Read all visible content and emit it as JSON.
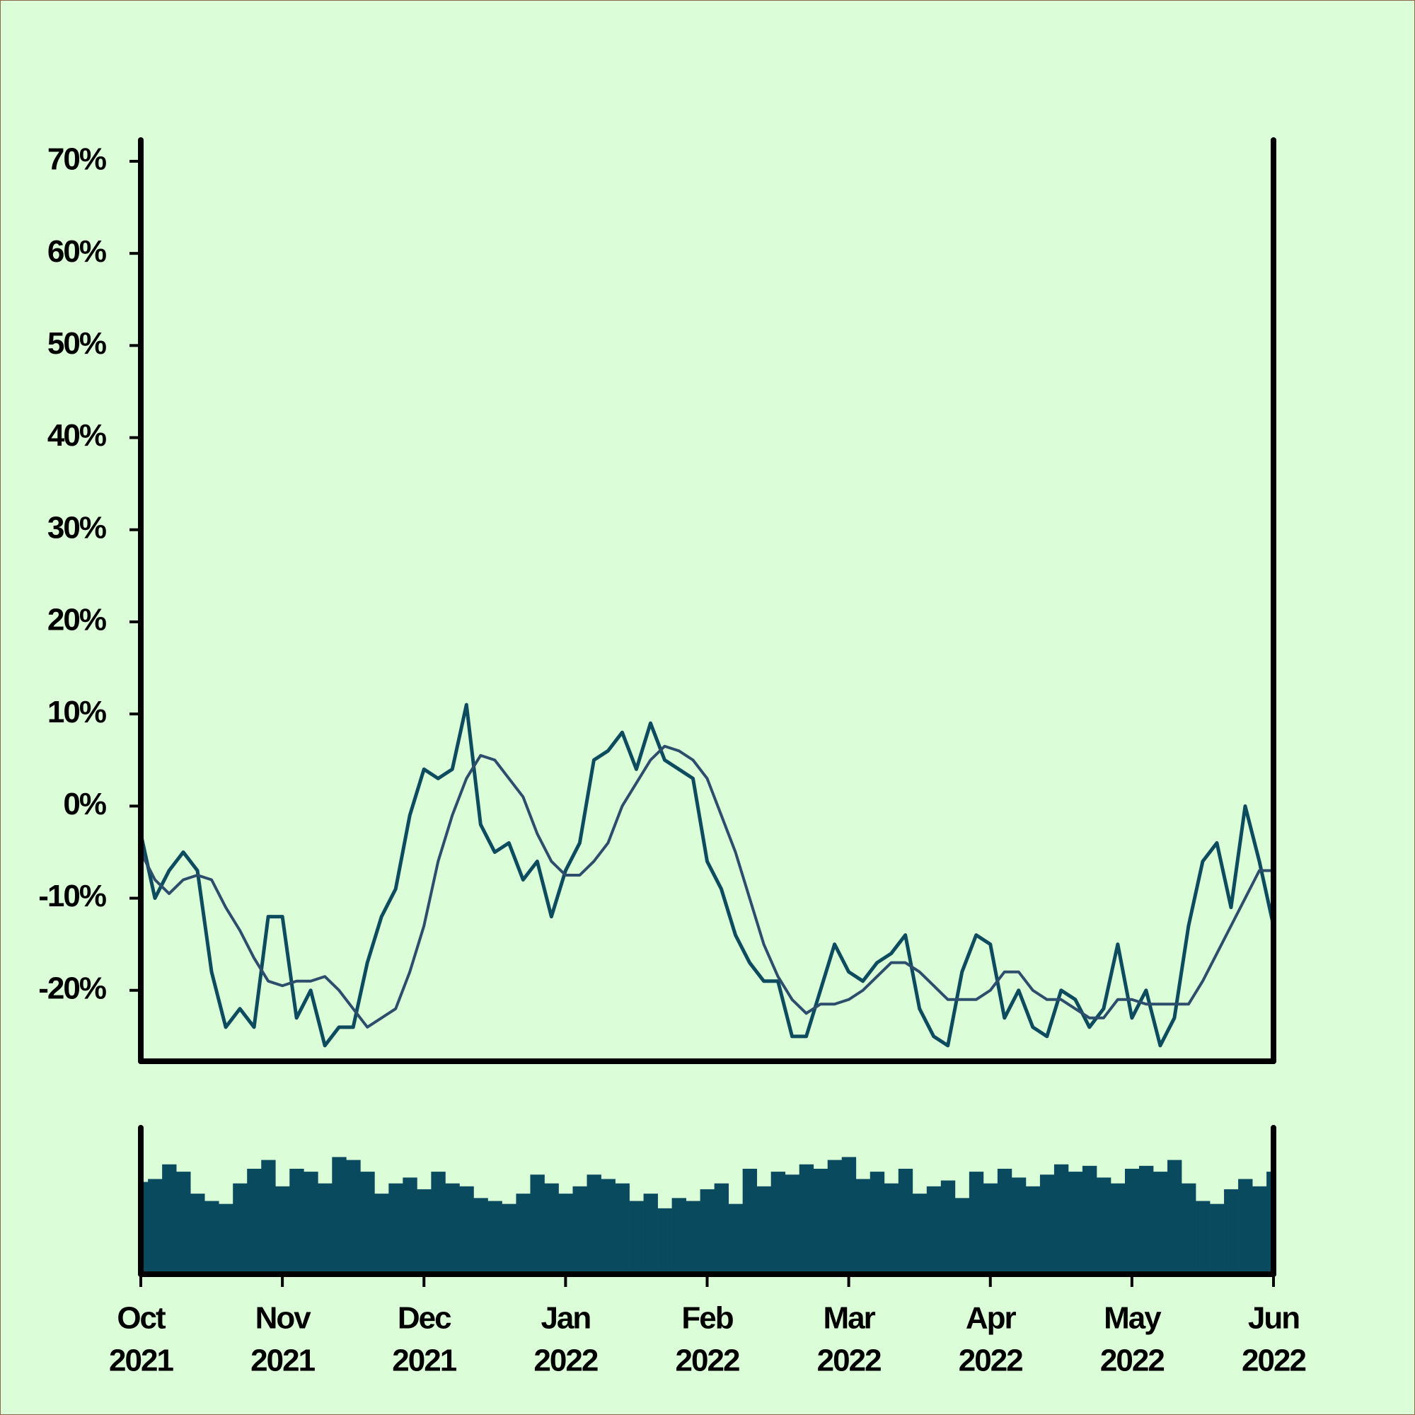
{
  "chart_data": [
    {
      "type": "line",
      "x": [
        0,
        1,
        2,
        3,
        4,
        5,
        6,
        7,
        8,
        9,
        10,
        11,
        12,
        13,
        14,
        15,
        16,
        17,
        18,
        19,
        20,
        21,
        22,
        23,
        24,
        25,
        26,
        27,
        28,
        29,
        30,
        31,
        32,
        33,
        34,
        35,
        36,
        37,
        38,
        39,
        40,
        41,
        42,
        43,
        44,
        45,
        46,
        47,
        48,
        49,
        50,
        51,
        52,
        53,
        54,
        55,
        56,
        57,
        58,
        59,
        60,
        61,
        62,
        63,
        64,
        65,
        66,
        67,
        68,
        69,
        70,
        71,
        72,
        73,
        74,
        75,
        76,
        77,
        78,
        79,
        80
      ],
      "xlim": [
        0,
        80
      ],
      "ylim": [
        -27.7,
        72.3
      ],
      "yticks": [
        {
          "value": 70,
          "label": "70%"
        },
        {
          "value": 60,
          "label": "60%"
        },
        {
          "value": 50,
          "label": "50%"
        },
        {
          "value": 40,
          "label": "40%"
        },
        {
          "value": 30,
          "label": "30%"
        },
        {
          "value": 20,
          "label": "20%"
        },
        {
          "value": 10,
          "label": "10%"
        },
        {
          "value": 0,
          "label": "0%"
        },
        {
          "value": -10,
          "label": "-10%"
        },
        {
          "value": -20,
          "label": "-20%"
        }
      ],
      "series": [
        {
          "color": "#0d4b5f",
          "values": [
            -3,
            -10,
            -7,
            -5,
            -7,
            -18,
            -24,
            -22,
            -24,
            -12,
            -12,
            -23,
            -20,
            -26,
            -24,
            -24,
            -17,
            -12,
            -9,
            -1,
            4,
            3,
            4,
            11,
            -2,
            -5,
            -4,
            -8,
            -6,
            -12,
            -7,
            -4,
            5,
            6,
            8,
            4,
            9,
            5,
            4,
            3,
            -6,
            -9,
            -14,
            -17,
            -19,
            -19,
            -25,
            -25,
            -20,
            -15,
            -18,
            -19,
            -17,
            -16,
            -14,
            -22,
            -25,
            -26,
            -18,
            -14,
            -15,
            -23,
            -20,
            -24,
            -25,
            -20,
            -21,
            -24,
            -22,
            -15,
            -23,
            -20,
            -26,
            -23,
            -13,
            -6,
            -4,
            -11,
            0,
            -6,
            -13
          ]
        },
        {
          "color": "#2c4d6b",
          "values": [
            -5,
            -8,
            -9.5,
            -8,
            -7.5,
            -8,
            -11,
            -13.5,
            -16.5,
            -19,
            -19.5,
            -19,
            -19,
            -18.5,
            -20,
            -22,
            -24,
            -23,
            -22,
            -18,
            -13,
            -6,
            -1,
            3,
            5.5,
            5,
            3,
            1,
            -3,
            -6,
            -7.5,
            -7.5,
            -6,
            -4,
            0,
            2.5,
            5,
            6.5,
            6,
            5,
            3,
            -1,
            -5,
            -10,
            -15,
            -18.5,
            -21,
            -22.5,
            -21.5,
            -21.5,
            -21,
            -20,
            -18.5,
            -17,
            -17,
            -18,
            -19.5,
            -21,
            -21,
            -21,
            -20,
            -18,
            -18,
            -20,
            -21,
            -21,
            -22,
            -23,
            -23,
            -21,
            -21,
            -21.5,
            -21.5,
            -21.5,
            -21.5,
            -19,
            -16,
            -13,
            -10,
            -7,
            -7
          ]
        }
      ]
    },
    {
      "type": "bar",
      "x": [
        0,
        1,
        2,
        3,
        4,
        5,
        6,
        7,
        8,
        9,
        10,
        11,
        12,
        13,
        14,
        15,
        16,
        17,
        18,
        19,
        20,
        21,
        22,
        23,
        24,
        25,
        26,
        27,
        28,
        29,
        30,
        31,
        32,
        33,
        34,
        35,
        36,
        37,
        38,
        39,
        40,
        41,
        42,
        43,
        44,
        45,
        46,
        47,
        48,
        49,
        50,
        51,
        52,
        53,
        54,
        55,
        56,
        57,
        58,
        59,
        60,
        61,
        62,
        63,
        64,
        65,
        66,
        67,
        68,
        69,
        70,
        71,
        72,
        73,
        74,
        75,
        76,
        77,
        78,
        79,
        80
      ],
      "xlim": [
        0,
        80
      ],
      "ylim": [
        0,
        100
      ],
      "color": "#0a4a5e",
      "values": [
        63,
        65,
        75,
        70,
        55,
        50,
        48,
        62,
        72,
        78,
        60,
        72,
        70,
        62,
        80,
        78,
        70,
        55,
        62,
        66,
        58,
        70,
        62,
        60,
        52,
        50,
        48,
        55,
        68,
        62,
        55,
        60,
        68,
        65,
        62,
        50,
        55,
        45,
        52,
        50,
        58,
        62,
        48,
        72,
        60,
        70,
        68,
        75,
        72,
        78,
        80,
        65,
        70,
        62,
        72,
        55,
        60,
        64,
        52,
        70,
        62,
        72,
        66,
        60,
        68,
        75,
        70,
        74,
        66,
        62,
        72,
        74,
        70,
        78,
        62,
        50,
        48,
        58,
        65,
        60,
        70
      ],
      "xticks": [
        {
          "value": 0,
          "label": [
            "Oct",
            "2021"
          ]
        },
        {
          "value": 10,
          "label": [
            "Nov",
            "2021"
          ]
        },
        {
          "value": 20,
          "label": [
            "Dec",
            "2021"
          ]
        },
        {
          "value": 30,
          "label": [
            "Jan",
            "2022"
          ]
        },
        {
          "value": 40,
          "label": [
            "Feb",
            "2022"
          ]
        },
        {
          "value": 50,
          "label": [
            "Mar",
            "2022"
          ]
        },
        {
          "value": 60,
          "label": [
            "Apr",
            "2022"
          ]
        },
        {
          "value": 70,
          "label": [
            "May",
            "2022"
          ]
        },
        {
          "value": 80,
          "label": [
            "Jun",
            "2022"
          ]
        }
      ]
    }
  ]
}
